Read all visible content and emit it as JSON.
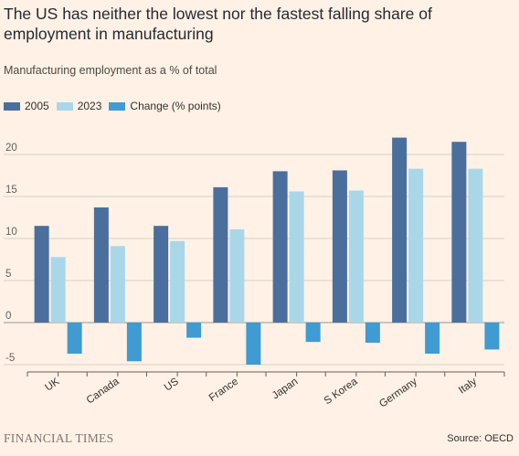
{
  "title": "The US has neither the lowest nor the fastest falling share of employment in manufacturing",
  "subtitle": "Manufacturing employment as a % of total",
  "source": "Source: OECD",
  "brand": "FINANCIAL TIMES",
  "colors": {
    "background": "#FFF1E5",
    "grid": "#D9CEC6",
    "axis": "#66605C"
  },
  "chart_data": {
    "type": "bar",
    "categories": [
      "UK",
      "Canada",
      "US",
      "France",
      "Japan",
      "S Korea",
      "Germany",
      "Italy"
    ],
    "series": [
      {
        "name": "2005",
        "color": "#4A6F9C",
        "values": [
          11.5,
          13.7,
          11.5,
          16.1,
          18.0,
          18.1,
          22.0,
          21.5
        ]
      },
      {
        "name": "2023",
        "color": "#A9D7E8",
        "values": [
          7.8,
          9.1,
          9.7,
          11.1,
          15.6,
          15.7,
          18.3,
          18.3
        ]
      },
      {
        "name": "Change (% points)",
        "color": "#3F9BD1",
        "values": [
          -3.7,
          -4.6,
          -1.8,
          -5.0,
          -2.3,
          -2.4,
          -3.7,
          -3.2
        ]
      }
    ],
    "yticks": [
      -5,
      0,
      5,
      10,
      15,
      20
    ],
    "ylim": [
      -5,
      23
    ],
    "legend_position": "top-left",
    "grid": true
  }
}
